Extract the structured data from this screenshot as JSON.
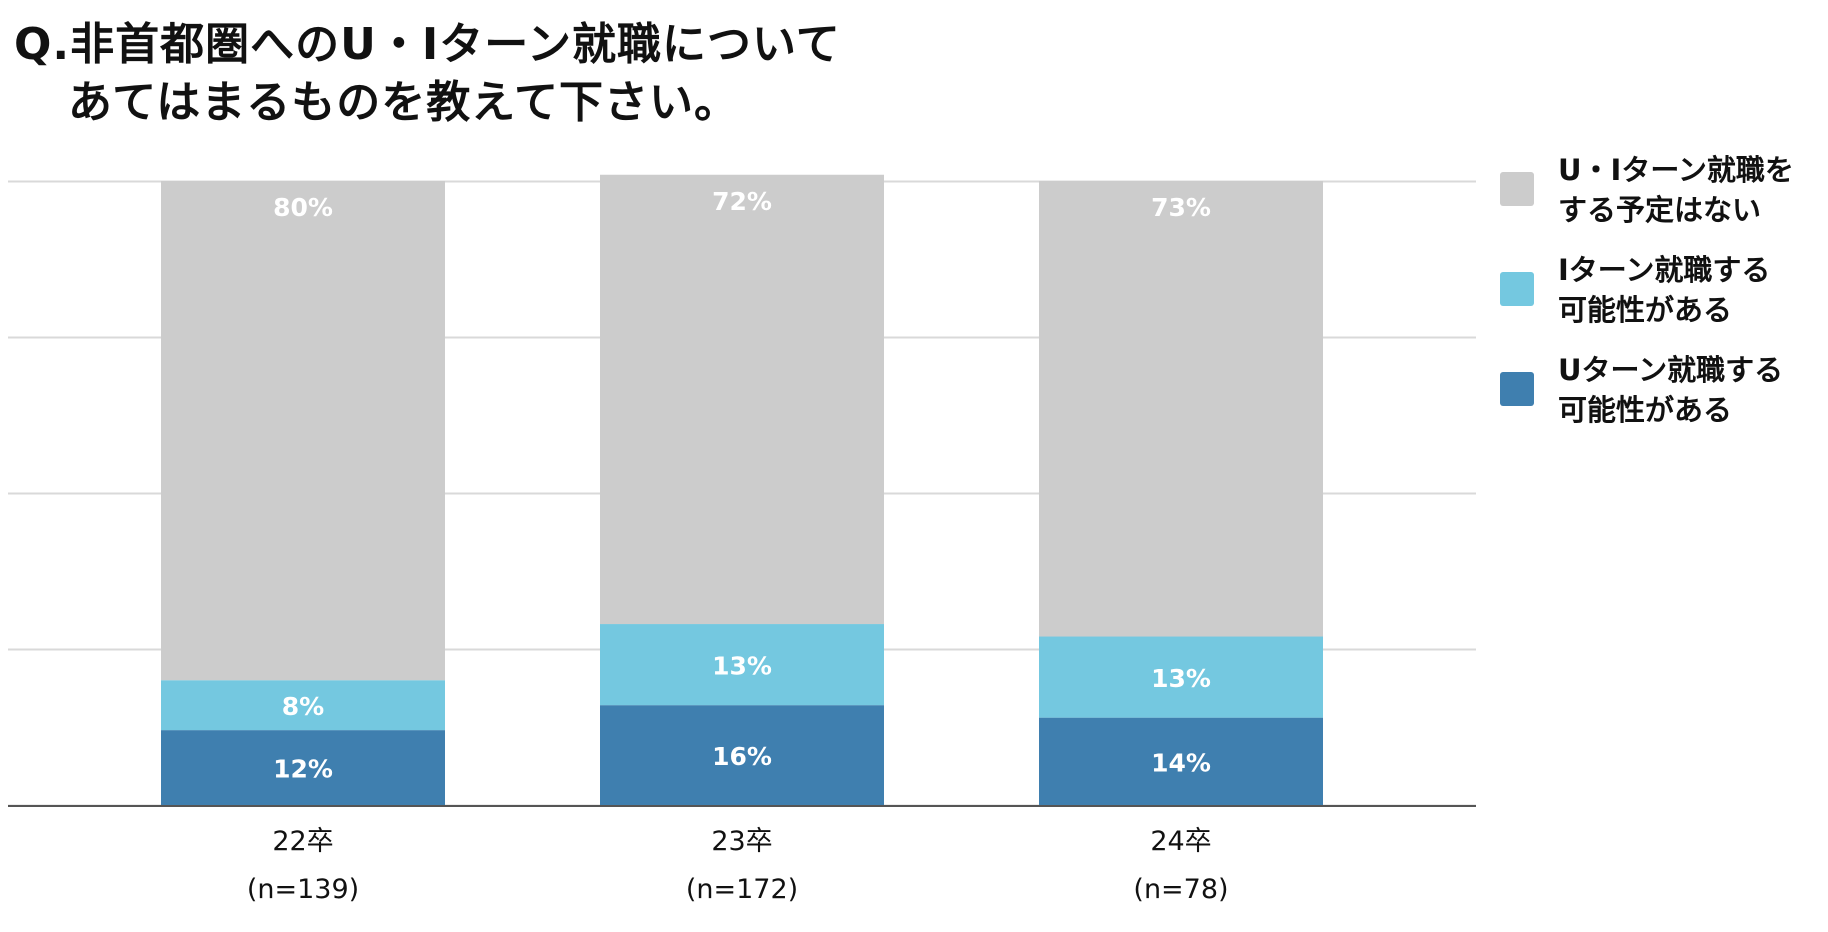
{
  "title": {
    "line1": "Q.非首都圏へのU・Iターン就職について",
    "line2": "あてはまるものを教えて下さい。"
  },
  "chart_data": {
    "type": "bar",
    "stacked": true,
    "categories": [
      "22卒",
      "23卒",
      "24卒"
    ],
    "category_sublabels": [
      "(n=139)",
      "(n=172)",
      "(n=78)"
    ],
    "series": [
      {
        "name": "Uターン就職する\n可能性がある",
        "values": [
          12,
          16,
          14
        ],
        "color": "#3f7faf"
      },
      {
        "name": "Iターン就職する\n可能性がある",
        "values": [
          8,
          13,
          13
        ],
        "color": "#74c8e0"
      },
      {
        "name": "U・Iターン就職を\nする予定はない",
        "values": [
          80,
          72,
          73
        ],
        "color": "#cccccc"
      }
    ],
    "value_suffix": "%",
    "ylim": [
      0,
      100
    ],
    "grid": true,
    "legend": "right",
    "legend_order": [
      2,
      1,
      0
    ]
  }
}
